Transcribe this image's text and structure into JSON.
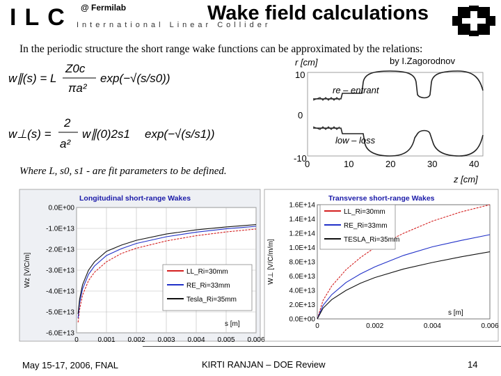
{
  "header": {
    "logo_letters": "ILC",
    "logo_subtitle": "International Linear Collider",
    "org": "@ Fermilab",
    "title": "Wake field calculations"
  },
  "intro": "In the periodic structure the short range wake functions can be approximated by the relations:",
  "credit": "by I.Zagorodnov",
  "fit_note": "Where L, s0, s1 - are fit parameters to be defined.",
  "equations": {
    "w_par": {
      "lhs": "w∥(s) = L",
      "frac_num": "Z0c",
      "frac_den": "πa²",
      "tail": "exp(−√(s/s0))"
    },
    "w_perp": {
      "lhs": "w⊥(s) =",
      "frac_num": "2",
      "frac_den": "a²",
      "mid": "w∥(0)2s1",
      "tail": "exp(−√(s/s1))"
    }
  },
  "footer": {
    "date": "May 15-17, 2006, FNAL",
    "center": "KIRTI RANJAN – DOE Review",
    "page": "14"
  },
  "profile": {
    "ylabel": "r [cm]",
    "xlabel": "z [cm]",
    "yticks": [
      "10",
      "0",
      "-10"
    ],
    "xticks": [
      "0",
      "10",
      "20",
      "30",
      "40"
    ],
    "label_top": "re – entrant",
    "label_bottom": "low – loss"
  },
  "chart_data": [
    {
      "type": "line",
      "title": "Longitudinal short-range Wakes",
      "xlabel": "s [m]",
      "ylabel": "Wz [V/C/m]",
      "x_ticks": [
        "0",
        "0.001",
        "0.002",
        "0.003",
        "0.004",
        "0.005",
        "0.006"
      ],
      "y_ticks": [
        "0.0E+00",
        "-1.0E+13",
        "-2.0E+13",
        "-3.0E+13",
        "-4.0E+13",
        "-5.0E+13",
        "-6.0E+13"
      ],
      "xlim": [
        0,
        0.006
      ],
      "ylim": [
        -60000000000000.0,
        0
      ],
      "grid": true,
      "legend_position": "bottom-right",
      "x": [
        5e-05,
        0.0001,
        0.0002,
        0.0004,
        0.0006,
        0.001,
        0.0015,
        0.002,
        0.003,
        0.004,
        0.005,
        0.006
      ],
      "series": [
        {
          "name": "LL_Ri=30mm",
          "color": "#d42020",
          "values": [
            -55000000000000.0,
            -49000000000000.0,
            -42000000000000.0,
            -35000000000000.0,
            -31000000000000.0,
            -26000000000000.0,
            -22000000000000.0,
            -19500000000000.0,
            -16000000000000.0,
            -13500000000000.0,
            -11700000000000.0,
            -10300000000000.0
          ]
        },
        {
          "name": "RE_Ri=33mm",
          "color": "#2030c8",
          "values": [
            -53000000000000.0,
            -46000000000000.0,
            -39000000000000.0,
            -32000000000000.0,
            -28000000000000.0,
            -23000000000000.0,
            -19700000000000.0,
            -17200000000000.0,
            -14000000000000.0,
            -11800000000000.0,
            -10200000000000.0,
            -9000000000000.0
          ]
        },
        {
          "name": "Tesla_Ri=35mm",
          "color": "#111111",
          "values": [
            -51000000000000.0,
            -44000000000000.0,
            -37000000000000.0,
            -30000000000000.0,
            -26000000000000.0,
            -21000000000000.0,
            -18000000000000.0,
            -15700000000000.0,
            -12700000000000.0,
            -10700000000000.0,
            -9300000000000.0,
            -8200000000000.0
          ]
        }
      ]
    },
    {
      "type": "line",
      "title": "Transverse short-range Wakes",
      "xlabel": "s [m]",
      "ylabel": "W⊥ [V/C/m/m]",
      "x_ticks": [
        "0",
        "0.002",
        "0.004",
        "0.006"
      ],
      "y_ticks": [
        "1.6E+14",
        "1.4E+14",
        "1.2E+14",
        "1.0E+14",
        "8.0E+13",
        "6.0E+13",
        "4.0E+13",
        "2.0E+13",
        "0.0E+00"
      ],
      "xlim": [
        0,
        0.006
      ],
      "ylim": [
        0,
        160000000000000.0
      ],
      "grid": false,
      "legend_position": "top-left",
      "x": [
        0,
        0.0002,
        0.0005,
        0.001,
        0.0015,
        0.002,
        0.003,
        0.004,
        0.005,
        0.006
      ],
      "series": [
        {
          "name": "LL_Ri=30mm",
          "color": "#d42020",
          "values": [
            0,
            26000000000000.0,
            46000000000000.0,
            69000000000000.0,
            86000000000000.0,
            100000000000000.0,
            120000000000000.0,
            137000000000000.0,
            150000000000000.0,
            160000000000000.0
          ]
        },
        {
          "name": "RE_Ri=33mm",
          "color": "#2030c8",
          "values": [
            0,
            19000000000000.0,
            34000000000000.0,
            51000000000000.0,
            63000000000000.0,
            73000000000000.0,
            89000000000000.0,
            101000000000000.0,
            110000000000000.0,
            118000000000000.0
          ]
        },
        {
          "name": "TESLA_Ri=35mm",
          "color": "#111111",
          "values": [
            0,
            15000000000000.0,
            27000000000000.0,
            40000000000000.0,
            50000000000000.0,
            58000000000000.0,
            70000000000000.0,
            79000000000000.0,
            87000000000000.0,
            94000000000000.0
          ]
        }
      ]
    }
  ]
}
